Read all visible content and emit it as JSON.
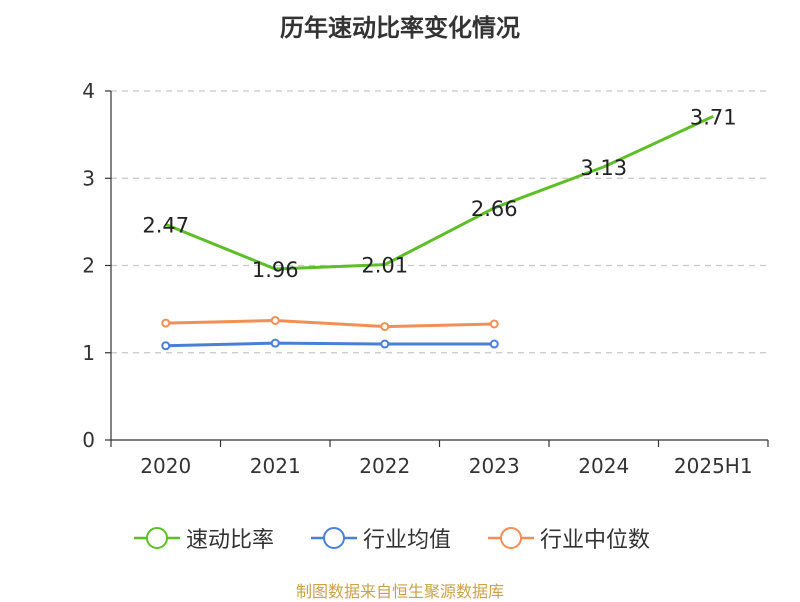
{
  "title": "历年速动比率变化情况",
  "source": "制图数据来自恒生聚源数据库",
  "chart_data": {
    "type": "line",
    "title": "历年速动比率变化情况",
    "categories": [
      "2020",
      "2021",
      "2022",
      "2023",
      "2024",
      "2025H1"
    ],
    "ylim": [
      0,
      4
    ],
    "yticks": [
      "0",
      "1",
      "2",
      "3",
      "4"
    ],
    "grid": true,
    "legend_position": "bottom",
    "series": [
      {
        "name": "速动比率",
        "color": "#5dbe27",
        "values": [
          2.47,
          1.96,
          2.01,
          2.66,
          3.13,
          3.71
        ],
        "labels": [
          "2.47",
          "1.96",
          "2.01",
          "2.66",
          "3.13",
          "3.71"
        ]
      },
      {
        "name": "行业均值",
        "color": "#4a7fd6",
        "values": [
          1.08,
          1.11,
          1.1,
          1.1,
          null,
          null
        ]
      },
      {
        "name": "行业中位数",
        "color": "#f28e56",
        "values": [
          1.34,
          1.37,
          1.3,
          1.33,
          null,
          null
        ]
      }
    ]
  }
}
